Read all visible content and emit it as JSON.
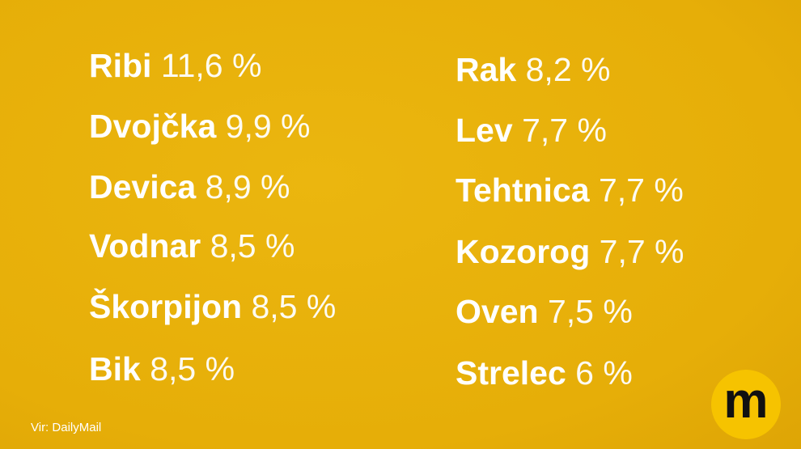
{
  "columns": [
    [
      {
        "name": "Ribi",
        "value": "11,6 %"
      },
      {
        "name": "Dvojčka",
        "value": "9,9 %"
      },
      {
        "name": "Devica",
        "value": "8,9 %"
      },
      {
        "name": "Vodnar",
        "value": "8,5 %"
      },
      {
        "name": "Škorpijon",
        "value": "8,5 %"
      },
      {
        "name": "Bik",
        "value": "8,5 %"
      }
    ],
    [
      {
        "name": "Rak",
        "value": "8,2 %"
      },
      {
        "name": "Lev",
        "value": "7,7 %"
      },
      {
        "name": "Tehtnica",
        "value": "7,7 %"
      },
      {
        "name": "Kozorog",
        "value": "7,7 %"
      },
      {
        "name": "Oven",
        "value": "7,5 %"
      },
      {
        "name": "Strelec",
        "value": "6 %"
      }
    ]
  ],
  "source": "Vir: DailyMail",
  "logo": "m"
}
